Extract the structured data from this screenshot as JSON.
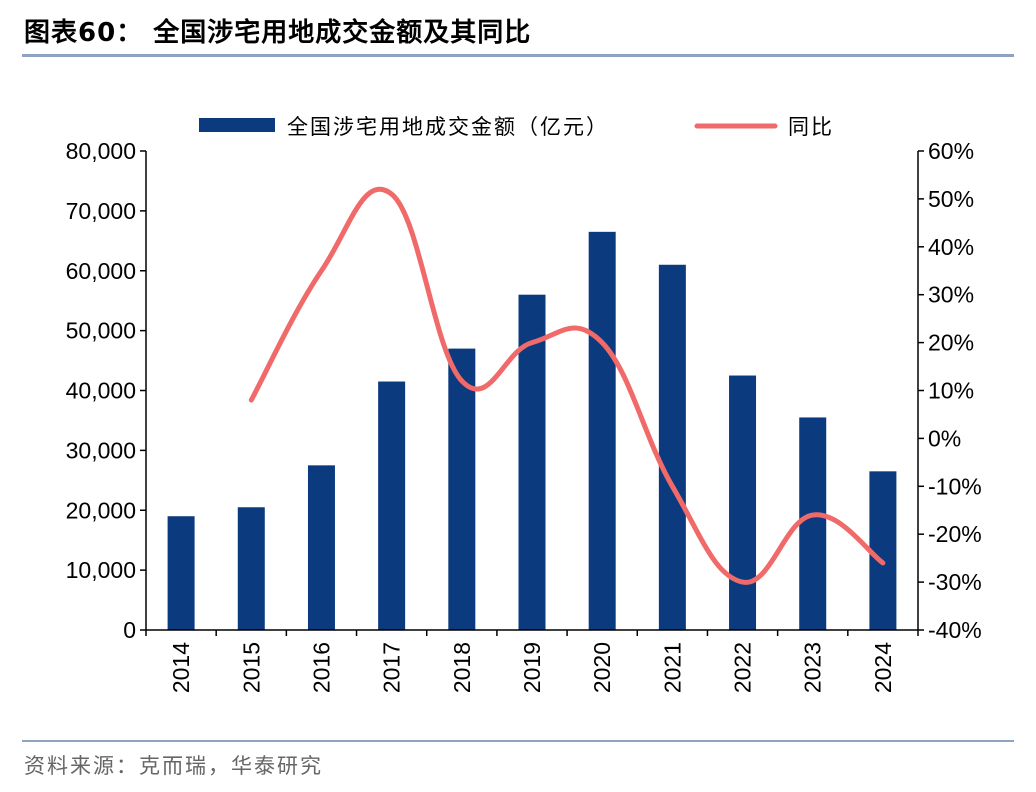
{
  "header": {
    "title": "图表60：  全国涉宅用地成交金额及其同比"
  },
  "footer": {
    "source": "资料来源：克而瑞，华泰研究"
  },
  "chart_data": {
    "type": "bar",
    "categories": [
      "2014",
      "2015",
      "2016",
      "2017",
      "2018",
      "2019",
      "2020",
      "2021",
      "2022",
      "2023",
      "2024"
    ],
    "series": [
      {
        "name": "全国涉宅用地成交金额（亿元）",
        "type": "bar",
        "axis": "left",
        "color": "#0b3a7e",
        "values": [
          19000,
          20500,
          27500,
          41500,
          47000,
          56000,
          66500,
          61000,
          42500,
          35500,
          26500
        ]
      },
      {
        "name": "同比",
        "type": "line",
        "axis": "right",
        "color": "#f06a6a",
        "values": [
          null,
          8,
          35,
          51,
          12,
          20,
          20,
          -10,
          -30,
          -16,
          -26
        ]
      }
    ],
    "y_left": {
      "min": 0,
      "max": 80000,
      "ticks": [
        "0",
        "10,000",
        "20,000",
        "30,000",
        "40,000",
        "50,000",
        "60,000",
        "70,000",
        "80,000"
      ]
    },
    "y_right": {
      "min": -40,
      "max": 60,
      "ticks": [
        "-40%",
        "-30%",
        "-20%",
        "-10%",
        "0%",
        "10%",
        "20%",
        "30%",
        "40%",
        "50%",
        "60%"
      ]
    },
    "legend_position": "top",
    "grid": false
  }
}
